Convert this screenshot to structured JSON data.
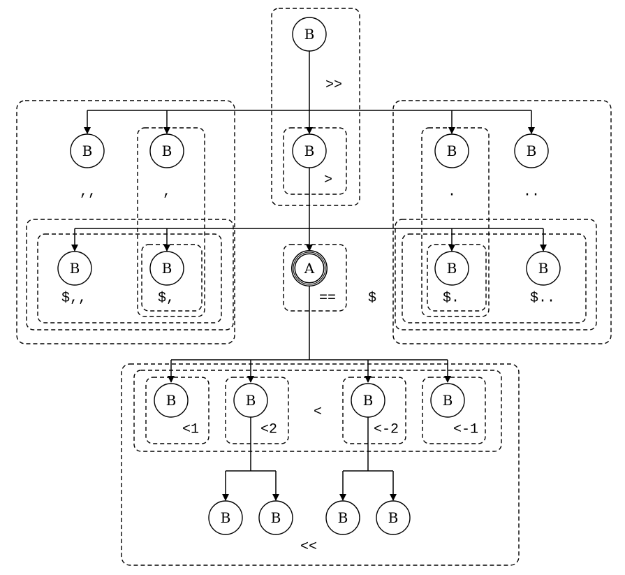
{
  "nodes": {
    "root": "A",
    "top": "B",
    "gt": "B",
    "comma2": "B",
    "comma1": "B",
    "dot1": "B",
    "dot2": "B",
    "dollar_comma2": "B",
    "dollar_comma1": "B",
    "dollar_dot1": "B",
    "dollar_dot2": "B",
    "lt1": "B",
    "lt2": "B",
    "lt_neg2": "B",
    "lt_neg1": "B",
    "lt2_child1": "B",
    "lt2_child2": "B",
    "lt_neg2_child1": "B",
    "lt_neg2_child2": "B"
  },
  "labels": {
    "double_gt": ">>",
    "gt": ">",
    "comma2": ",,",
    "comma1": ",",
    "dot1": ".",
    "dot2": "..",
    "dollar_comma2": "$,,",
    "dollar_comma1": "$,",
    "equals": "==",
    "dollar": "$",
    "dollar_dot1": "$.",
    "dollar_dot2": "$..",
    "lt1": "<1",
    "lt2": "<2",
    "lt": "<",
    "lt_neg2": "<-2",
    "lt_neg1": "<-1",
    "double_lt": "<<"
  }
}
